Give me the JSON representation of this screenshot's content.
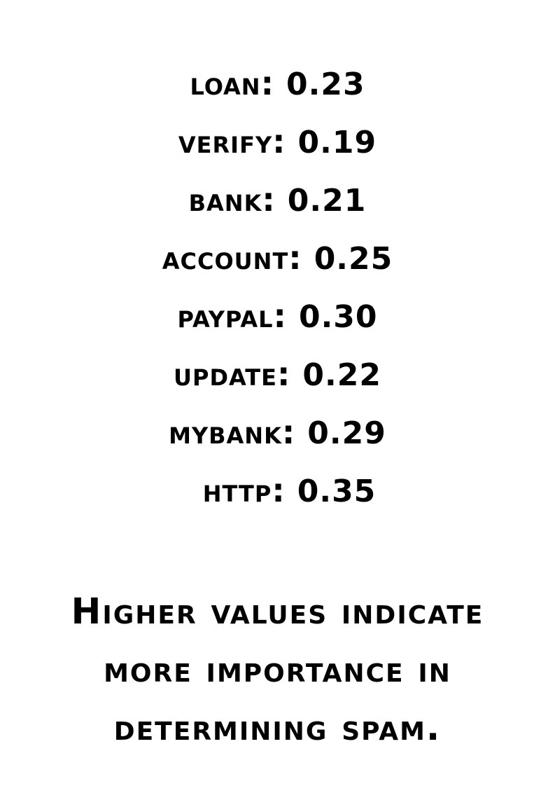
{
  "scores": [
    {
      "term": "loan",
      "value": "0.23"
    },
    {
      "term": "verify",
      "value": "0.19"
    },
    {
      "term": "bank",
      "value": "0.21"
    },
    {
      "term": "account",
      "value": "0.25"
    },
    {
      "term": "paypal",
      "value": "0.30"
    },
    {
      "term": "update",
      "value": "0.22"
    },
    {
      "term": "mybank",
      "value": "0.29"
    },
    {
      "term": "http",
      "value": "0.35"
    }
  ],
  "caption": {
    "line1": "Higher values indicate",
    "line2": "more importance in",
    "line3": "determining spam."
  }
}
